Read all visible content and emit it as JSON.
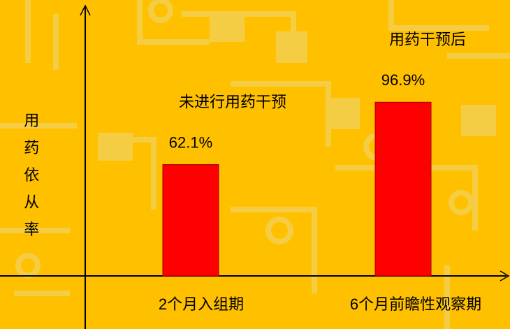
{
  "chart_data": {
    "type": "bar",
    "ylabel": "用药依从率",
    "categories": [
      "2个月入组期",
      "6个月前瞻性观察期"
    ],
    "values": [
      62.1,
      96.9
    ],
    "value_labels": [
      "62.1%",
      "96.9%"
    ],
    "annotations": [
      "未进行用药干预",
      "用药干预后"
    ],
    "color": "#ff0000",
    "ylim": [
      0,
      150
    ]
  }
}
